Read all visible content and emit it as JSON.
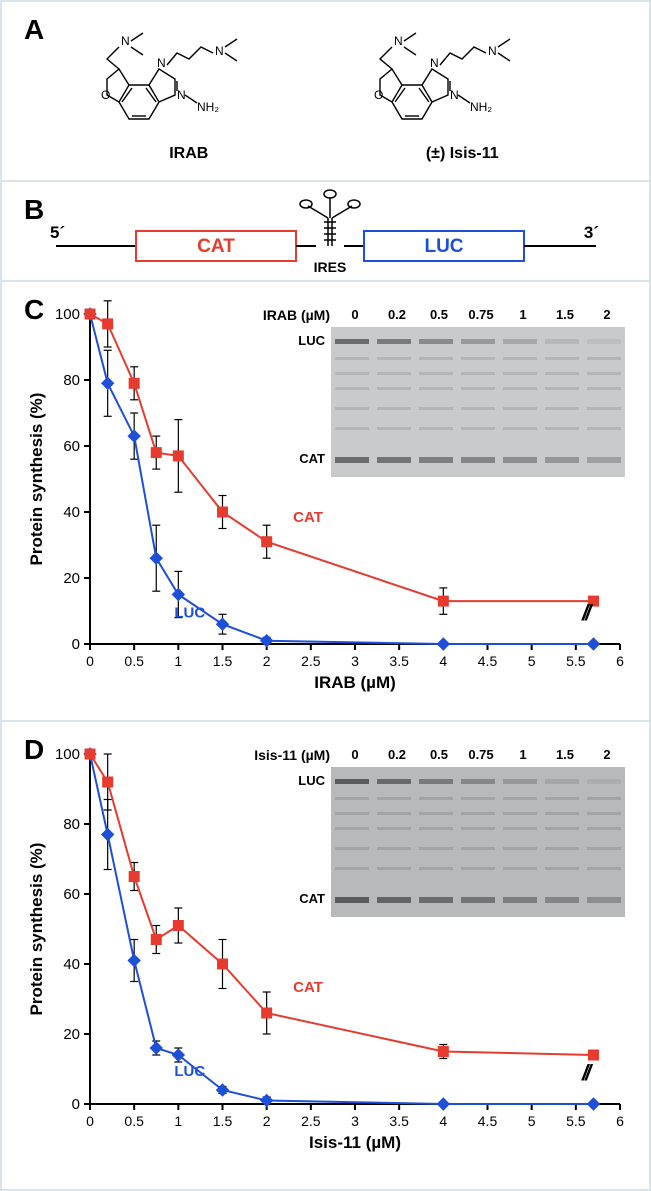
{
  "panel_labels": {
    "a": "A",
    "b": "B",
    "c": "C",
    "d": "D"
  },
  "structures": {
    "left_label": "IRAB",
    "right_label": "(±) Isis-11"
  },
  "bicistronic": {
    "five_prime": "5´",
    "three_prime": "3´",
    "cat": "CAT",
    "luc": "LUC",
    "ires": "IRES",
    "cat_color": "#e63b2e",
    "luc_color": "#1d4fd7"
  },
  "chart_c": {
    "xlabel": "IRAB (µM)",
    "ylabel": "Protein synthesis (%)",
    "series_cat_label": "CAT",
    "series_luc_label": "LUC",
    "cat_color": "#e63b2e",
    "luc_color": "#1d4fd7",
    "x_ticks": [
      0,
      0.5,
      1.0,
      1.5,
      2.0,
      2.5,
      3.0,
      3.5,
      4.0,
      4.5,
      5.0,
      5.5,
      6.0
    ],
    "y_ticks": [
      0,
      20,
      40,
      60,
      80,
      100
    ],
    "xlim": [
      0,
      6
    ],
    "ylim": [
      0,
      100
    ],
    "cat_x": [
      0,
      0.2,
      0.5,
      0.75,
      1.0,
      1.5,
      2.0,
      4.0,
      5.7
    ],
    "cat_y": [
      100,
      97,
      79,
      58,
      57,
      40,
      31,
      13,
      13
    ],
    "cat_err": [
      0,
      7,
      5,
      5,
      11,
      5,
      5,
      4,
      0
    ],
    "luc_x": [
      0,
      0.2,
      0.5,
      0.75,
      1.0,
      1.5,
      2.0,
      4.0,
      5.7
    ],
    "luc_y": [
      100,
      79,
      63,
      26,
      15,
      6,
      1,
      0,
      0
    ],
    "luc_err": [
      0,
      10,
      7,
      10,
      7,
      3,
      1,
      0,
      0
    ],
    "gel": {
      "compound_label": "IRAB (µM)",
      "concs": [
        "0",
        "0.2",
        "0.5",
        "0.75",
        "1",
        "1.5",
        "2"
      ],
      "luc_label": "LUC",
      "cat_label": "CAT",
      "background": "#c9cacc",
      "band_color": "#6b6c6e"
    }
  },
  "chart_d": {
    "xlabel": "Isis-11 (µM)",
    "ylabel": "Protein synthesis (%)",
    "series_cat_label": "CAT",
    "series_luc_label": "LUC",
    "cat_color": "#e63b2e",
    "luc_color": "#1d4fd7",
    "x_ticks": [
      0,
      0.5,
      1.0,
      1.5,
      2.0,
      2.5,
      3.0,
      3.5,
      4.0,
      4.5,
      5.0,
      5.5,
      6.0
    ],
    "y_ticks": [
      0,
      20,
      40,
      60,
      80,
      100
    ],
    "xlim": [
      0,
      6
    ],
    "ylim": [
      0,
      100
    ],
    "cat_x": [
      0,
      0.2,
      0.5,
      0.75,
      1.0,
      1.5,
      2.0,
      4.0,
      5.7
    ],
    "cat_y": [
      100,
      92,
      65,
      47,
      51,
      40,
      26,
      15,
      14
    ],
    "cat_err": [
      0,
      8,
      4,
      4,
      5,
      7,
      6,
      2,
      0
    ],
    "luc_x": [
      0,
      0.2,
      0.5,
      0.75,
      1.0,
      1.5,
      2.0,
      4.0,
      5.7
    ],
    "luc_y": [
      100,
      77,
      41,
      16,
      14,
      4,
      1,
      0,
      0
    ],
    "luc_err": [
      0,
      10,
      6,
      2,
      2,
      1,
      1,
      0,
      0
    ],
    "gel": {
      "compound_label": "Isis-11 (µM)",
      "concs": [
        "0",
        "0.2",
        "0.5",
        "0.75",
        "1",
        "1.5",
        "2"
      ],
      "luc_label": "LUC",
      "cat_label": "CAT",
      "background": "#b8b9bb",
      "band_color": "#5a5b5d"
    }
  },
  "break_symbol": "//"
}
